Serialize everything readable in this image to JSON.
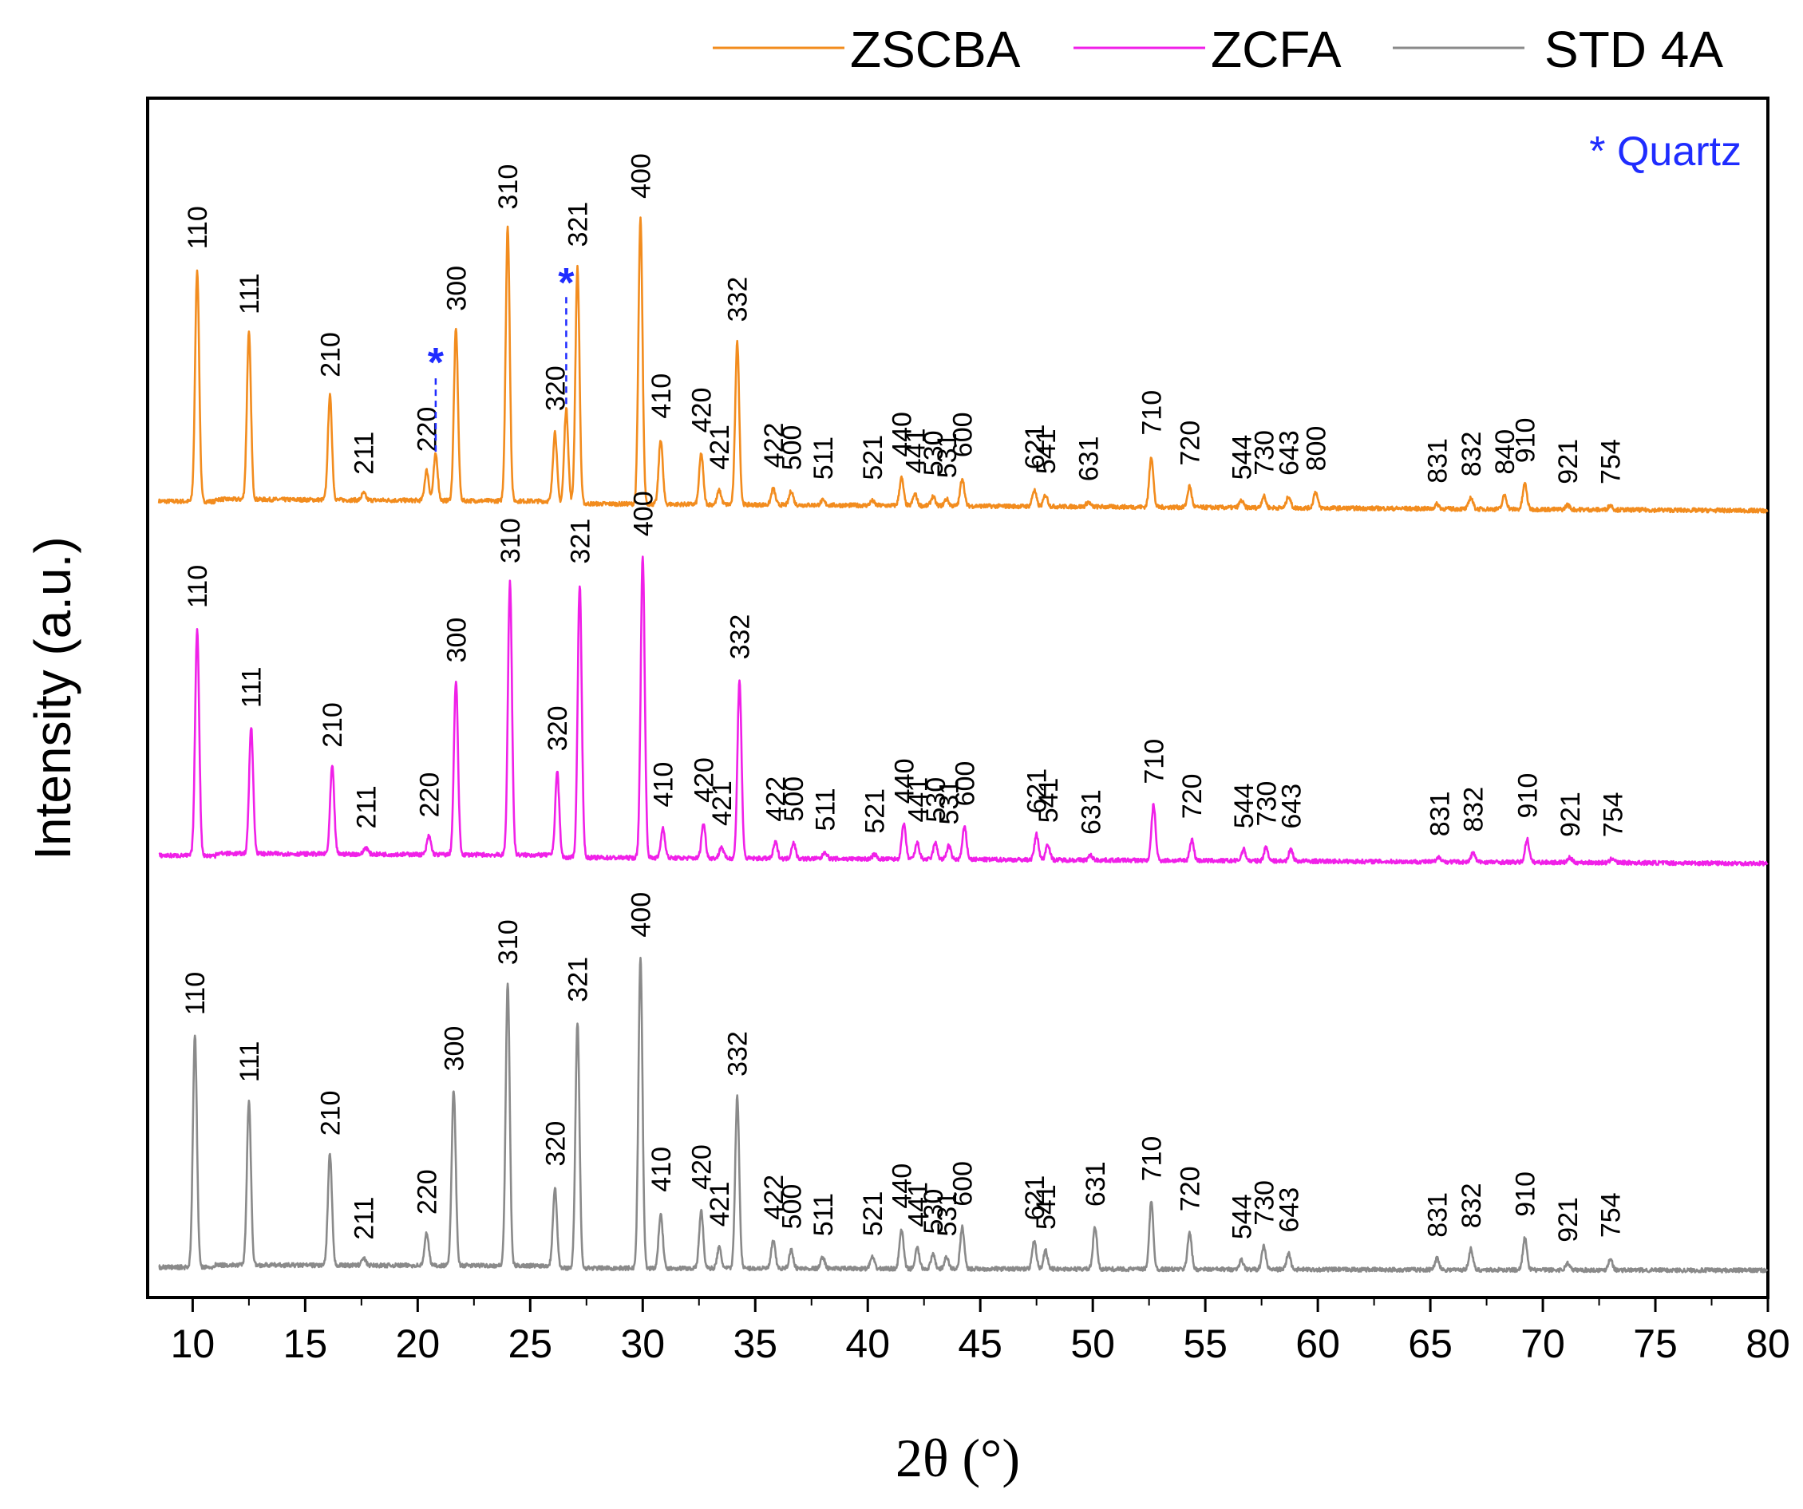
{
  "chart_data": {
    "type": "line",
    "title": "",
    "xlabel": "2θ (°)",
    "ylabel": "Intensity (a.u.)",
    "xlim": [
      8,
      80
    ],
    "xticks": [
      10,
      15,
      20,
      25,
      30,
      35,
      40,
      45,
      50,
      55,
      60,
      65,
      70,
      75,
      80
    ],
    "grid": false,
    "legend_position": "top-right",
    "quartz_note": "* Quartz",
    "quartz_symbol": "*",
    "quartz_color": "#1f2cff",
    "series": [
      {
        "name": "ZSCBA",
        "color": "#f28c1e",
        "baseline": 0.0,
        "peaks": [
          {
            "label": "110",
            "x": 10.2,
            "h": 1.0
          },
          {
            "label": "111",
            "x": 12.5,
            "h": 0.72
          },
          {
            "label": "210",
            "x": 16.1,
            "h": 0.45
          },
          {
            "label": "211",
            "x": 17.6,
            "h": 0.03
          },
          {
            "label": "220",
            "x": 20.4,
            "h": 0.13
          },
          {
            "label": "300",
            "x": 21.7,
            "h": 0.74
          },
          {
            "label": "310",
            "x": 24.0,
            "h": 1.18
          },
          {
            "label": "320",
            "x": 26.1,
            "h": 0.31
          },
          {
            "label": "321",
            "x": 27.1,
            "h": 1.02
          },
          {
            "label": "400",
            "x": 29.9,
            "h": 1.23
          },
          {
            "label": "410",
            "x": 30.8,
            "h": 0.28
          },
          {
            "label": "420",
            "x": 32.6,
            "h": 0.22
          },
          {
            "label": "421",
            "x": 33.4,
            "h": 0.06
          },
          {
            "label": "332",
            "x": 34.2,
            "h": 0.7
          },
          {
            "label": "422",
            "x": 35.8,
            "h": 0.07
          },
          {
            "label": "500",
            "x": 36.6,
            "h": 0.06
          },
          {
            "label": "511",
            "x": 38.0,
            "h": 0.02
          },
          {
            "label": "521",
            "x": 40.2,
            "h": 0.02
          },
          {
            "label": "440",
            "x": 41.5,
            "h": 0.12
          },
          {
            "label": "441",
            "x": 42.1,
            "h": 0.05
          },
          {
            "label": "530",
            "x": 42.9,
            "h": 0.04
          },
          {
            "label": "531",
            "x": 43.5,
            "h": 0.03
          },
          {
            "label": "600",
            "x": 44.2,
            "h": 0.12
          },
          {
            "label": "621",
            "x": 47.4,
            "h": 0.07
          },
          {
            "label": "541",
            "x": 47.9,
            "h": 0.05
          },
          {
            "label": "631",
            "x": 49.8,
            "h": 0.02
          },
          {
            "label": "710",
            "x": 52.6,
            "h": 0.22
          },
          {
            "label": "720",
            "x": 54.3,
            "h": 0.09
          },
          {
            "label": "544",
            "x": 56.6,
            "h": 0.03
          },
          {
            "label": "730",
            "x": 57.6,
            "h": 0.05
          },
          {
            "label": "643",
            "x": 58.7,
            "h": 0.05
          },
          {
            "label": "800",
            "x": 59.9,
            "h": 0.07
          },
          {
            "label": "831",
            "x": 65.3,
            "h": 0.02
          },
          {
            "label": "832",
            "x": 66.8,
            "h": 0.05
          },
          {
            "label": "840",
            "x": 68.3,
            "h": 0.06
          },
          {
            "label": "910",
            "x": 69.2,
            "h": 0.11
          },
          {
            "label": "921",
            "x": 71.1,
            "h": 0.02
          },
          {
            "label": "754",
            "x": 73.0,
            "h": 0.02
          }
        ],
        "quartz_peaks": [
          {
            "x": 20.8,
            "h": 0.2
          },
          {
            "x": 26.6,
            "h": 0.41
          }
        ]
      },
      {
        "name": "ZCFA",
        "color": "#f020e8",
        "baseline": 0.0,
        "peaks": [
          {
            "label": "110",
            "x": 10.2,
            "h": 0.98
          },
          {
            "label": "111",
            "x": 12.6,
            "h": 0.55
          },
          {
            "label": "210",
            "x": 16.2,
            "h": 0.38
          },
          {
            "label": "211",
            "x": 17.7,
            "h": 0.03
          },
          {
            "label": "220",
            "x": 20.5,
            "h": 0.08
          },
          {
            "label": "300",
            "x": 21.7,
            "h": 0.75
          },
          {
            "label": "310",
            "x": 24.1,
            "h": 1.18
          },
          {
            "label": "320",
            "x": 26.2,
            "h": 0.37
          },
          {
            "label": "321",
            "x": 27.2,
            "h": 1.18
          },
          {
            "label": "400",
            "x": 30.0,
            "h": 1.3
          },
          {
            "label": "410",
            "x": 30.9,
            "h": 0.13
          },
          {
            "label": "420",
            "x": 32.7,
            "h": 0.15
          },
          {
            "label": "421",
            "x": 33.5,
            "h": 0.05
          },
          {
            "label": "332",
            "x": 34.3,
            "h": 0.77
          },
          {
            "label": "422",
            "x": 35.9,
            "h": 0.07
          },
          {
            "label": "500",
            "x": 36.7,
            "h": 0.07
          },
          {
            "label": "511",
            "x": 38.1,
            "h": 0.03
          },
          {
            "label": "521",
            "x": 40.3,
            "h": 0.02
          },
          {
            "label": "440",
            "x": 41.6,
            "h": 0.15
          },
          {
            "label": "441",
            "x": 42.2,
            "h": 0.07
          },
          {
            "label": "530",
            "x": 43.0,
            "h": 0.07
          },
          {
            "label": "531",
            "x": 43.6,
            "h": 0.06
          },
          {
            "label": "600",
            "x": 44.3,
            "h": 0.14
          },
          {
            "label": "621",
            "x": 47.5,
            "h": 0.11
          },
          {
            "label": "541",
            "x": 48.0,
            "h": 0.07
          },
          {
            "label": "631",
            "x": 49.9,
            "h": 0.02
          },
          {
            "label": "710",
            "x": 52.7,
            "h": 0.24
          },
          {
            "label": "720",
            "x": 54.4,
            "h": 0.09
          },
          {
            "label": "544",
            "x": 56.7,
            "h": 0.05
          },
          {
            "label": "730",
            "x": 57.7,
            "h": 0.06
          },
          {
            "label": "643",
            "x": 58.8,
            "h": 0.05
          },
          {
            "label": "831",
            "x": 65.4,
            "h": 0.02
          },
          {
            "label": "832",
            "x": 66.9,
            "h": 0.04
          },
          {
            "label": "910",
            "x": 69.3,
            "h": 0.1
          },
          {
            "label": "921",
            "x": 71.2,
            "h": 0.02
          },
          {
            "label": "754",
            "x": 73.1,
            "h": 0.02
          }
        ]
      },
      {
        "name": "STD 4A",
        "color": "#8a8a8a",
        "baseline": 0.0,
        "peaks": [
          {
            "label": "110",
            "x": 10.1,
            "h": 1.0
          },
          {
            "label": "111",
            "x": 12.5,
            "h": 0.71
          },
          {
            "label": "210",
            "x": 16.1,
            "h": 0.48
          },
          {
            "label": "211",
            "x": 17.6,
            "h": 0.03
          },
          {
            "label": "220",
            "x": 20.4,
            "h": 0.14
          },
          {
            "label": "300",
            "x": 21.6,
            "h": 0.76
          },
          {
            "label": "310",
            "x": 24.0,
            "h": 1.22
          },
          {
            "label": "320",
            "x": 26.1,
            "h": 0.35
          },
          {
            "label": "321",
            "x": 27.1,
            "h": 1.06
          },
          {
            "label": "400",
            "x": 29.9,
            "h": 1.34
          },
          {
            "label": "410",
            "x": 30.8,
            "h": 0.24
          },
          {
            "label": "420",
            "x": 32.6,
            "h": 0.25
          },
          {
            "label": "421",
            "x": 33.4,
            "h": 0.09
          },
          {
            "label": "332",
            "x": 34.2,
            "h": 0.74
          },
          {
            "label": "422",
            "x": 35.8,
            "h": 0.12
          },
          {
            "label": "500",
            "x": 36.6,
            "h": 0.08
          },
          {
            "label": "511",
            "x": 38.0,
            "h": 0.05
          },
          {
            "label": "521",
            "x": 40.2,
            "h": 0.05
          },
          {
            "label": "440",
            "x": 41.5,
            "h": 0.17
          },
          {
            "label": "441",
            "x": 42.2,
            "h": 0.09
          },
          {
            "label": "530",
            "x": 42.9,
            "h": 0.06
          },
          {
            "label": "531",
            "x": 43.5,
            "h": 0.05
          },
          {
            "label": "600",
            "x": 44.2,
            "h": 0.18
          },
          {
            "label": "621",
            "x": 47.4,
            "h": 0.12
          },
          {
            "label": "541",
            "x": 47.9,
            "h": 0.08
          },
          {
            "label": "631",
            "x": 50.1,
            "h": 0.18
          },
          {
            "label": "710",
            "x": 52.6,
            "h": 0.29
          },
          {
            "label": "720",
            "x": 54.3,
            "h": 0.16
          },
          {
            "label": "544",
            "x": 56.6,
            "h": 0.04
          },
          {
            "label": "730",
            "x": 57.6,
            "h": 0.1
          },
          {
            "label": "643",
            "x": 58.7,
            "h": 0.07
          },
          {
            "label": "831",
            "x": 65.3,
            "h": 0.05
          },
          {
            "label": "832",
            "x": 66.8,
            "h": 0.09
          },
          {
            "label": "910",
            "x": 69.2,
            "h": 0.14
          },
          {
            "label": "921",
            "x": 71.1,
            "h": 0.03
          },
          {
            "label": "754",
            "x": 73.0,
            "h": 0.05
          }
        ]
      }
    ]
  }
}
